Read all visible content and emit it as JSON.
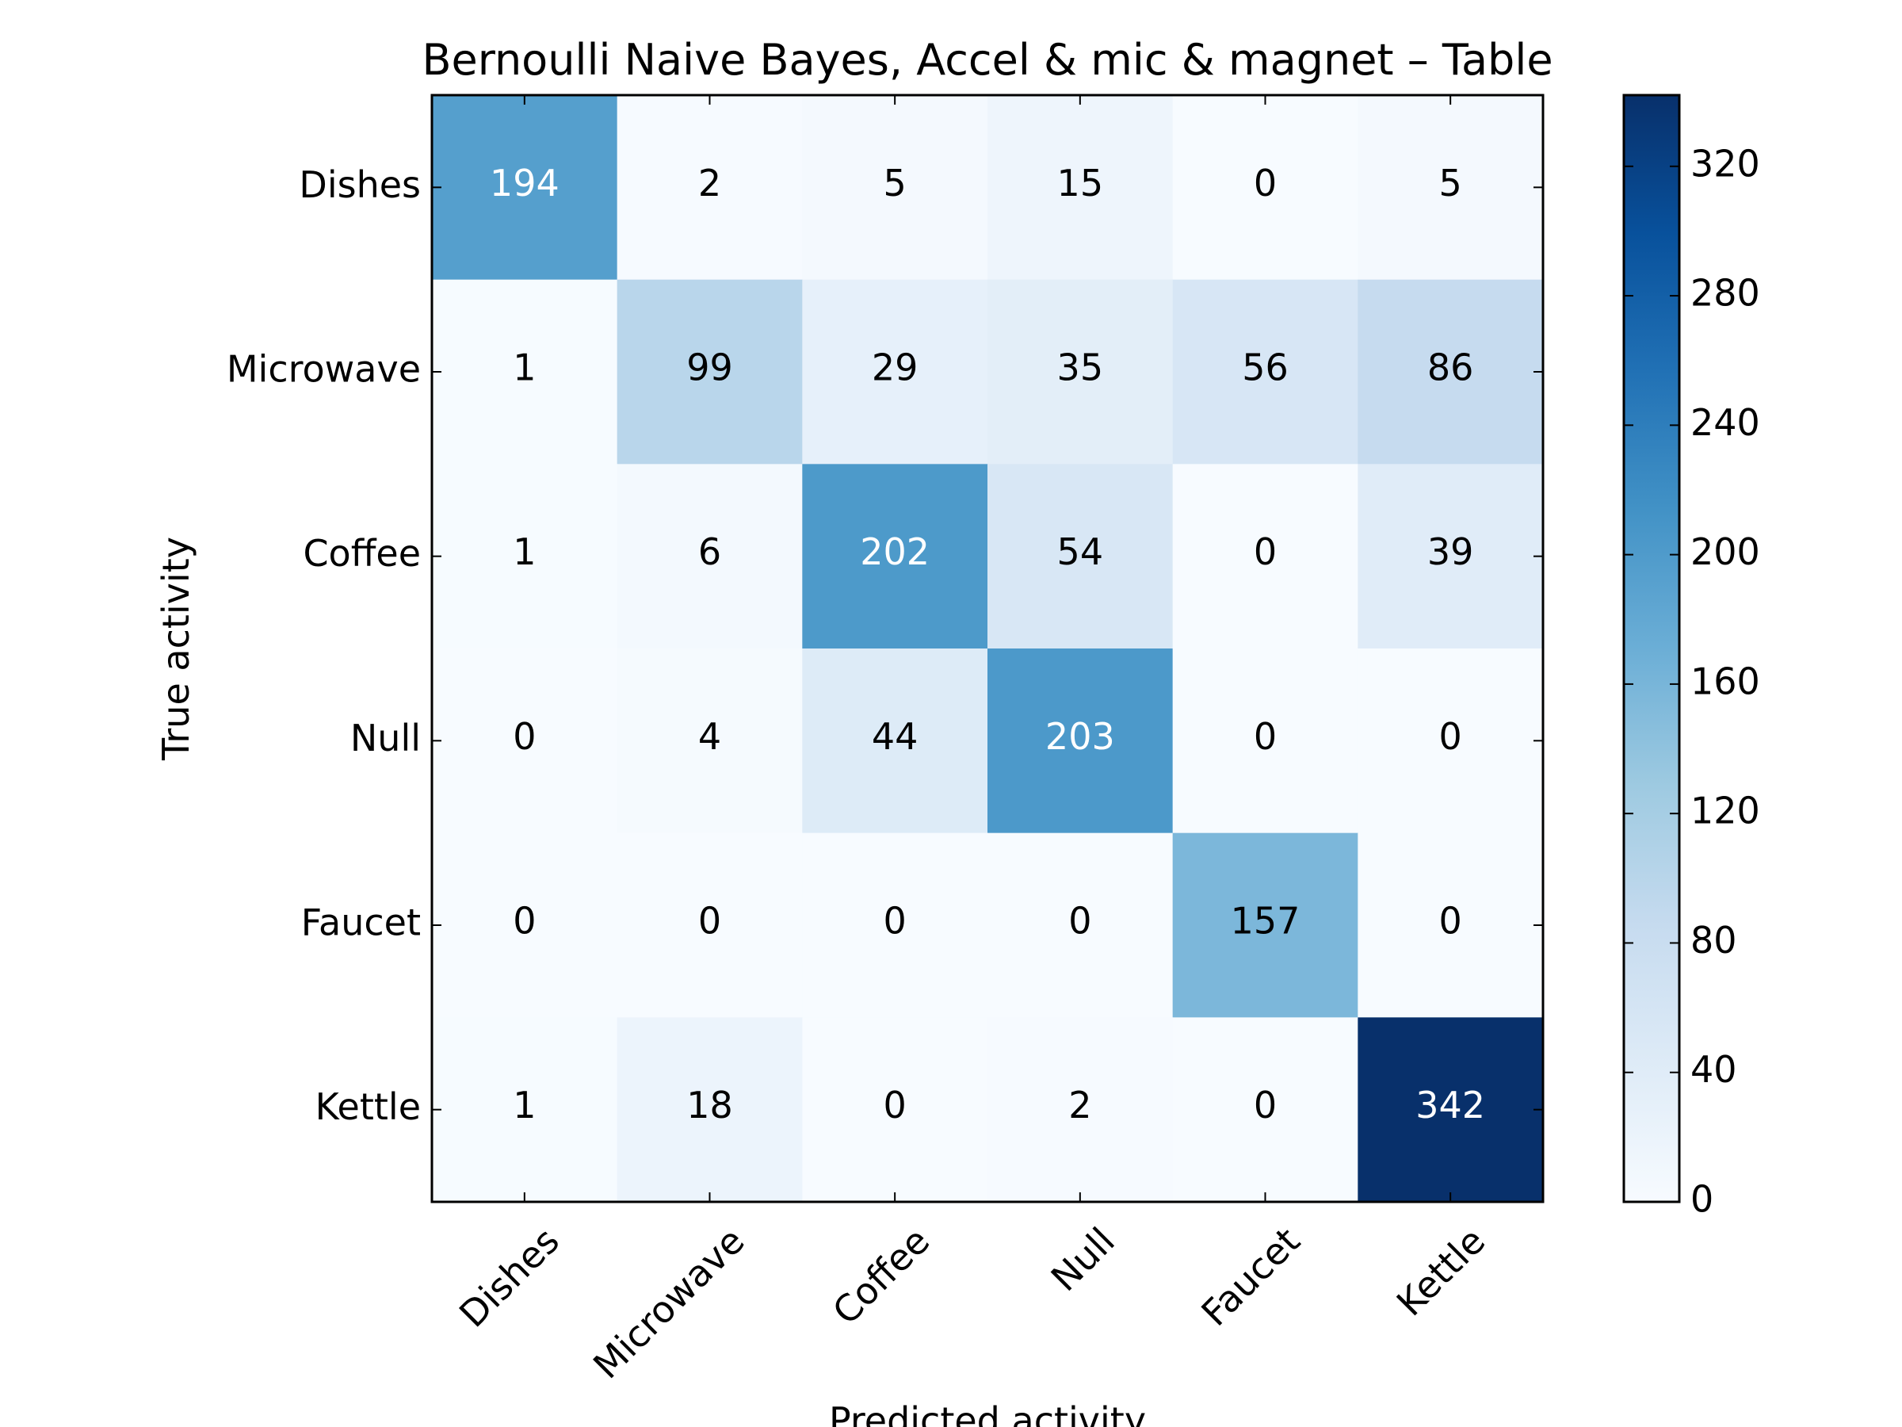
{
  "chart_data": {
    "type": "heatmap",
    "title": "Bernoulli Naive Bayes, Accel & mic & magnet – Table",
    "xlabel": "Predicted activity",
    "ylabel": "True activity",
    "x_categories": [
      "Dishes",
      "Microwave",
      "Coffee",
      "Null",
      "Faucet",
      "Kettle"
    ],
    "y_categories": [
      "Dishes",
      "Microwave",
      "Coffee",
      "Null",
      "Faucet",
      "Kettle"
    ],
    "values": [
      [
        194,
        2,
        5,
        15,
        0,
        5
      ],
      [
        1,
        99,
        29,
        35,
        56,
        86
      ],
      [
        1,
        6,
        202,
        54,
        0,
        39
      ],
      [
        0,
        4,
        44,
        203,
        0,
        0
      ],
      [
        0,
        0,
        0,
        0,
        157,
        0
      ],
      [
        1,
        18,
        0,
        2,
        0,
        342
      ]
    ],
    "colormap": "Blues",
    "color_range": [
      0,
      342
    ],
    "colorbar_ticks": [
      0,
      40,
      80,
      120,
      160,
      200,
      240,
      280,
      320
    ],
    "colorbar_tick_labels": [
      "0",
      "40",
      "80",
      "120",
      "160",
      "200",
      "240",
      "280",
      "320"
    ]
  }
}
